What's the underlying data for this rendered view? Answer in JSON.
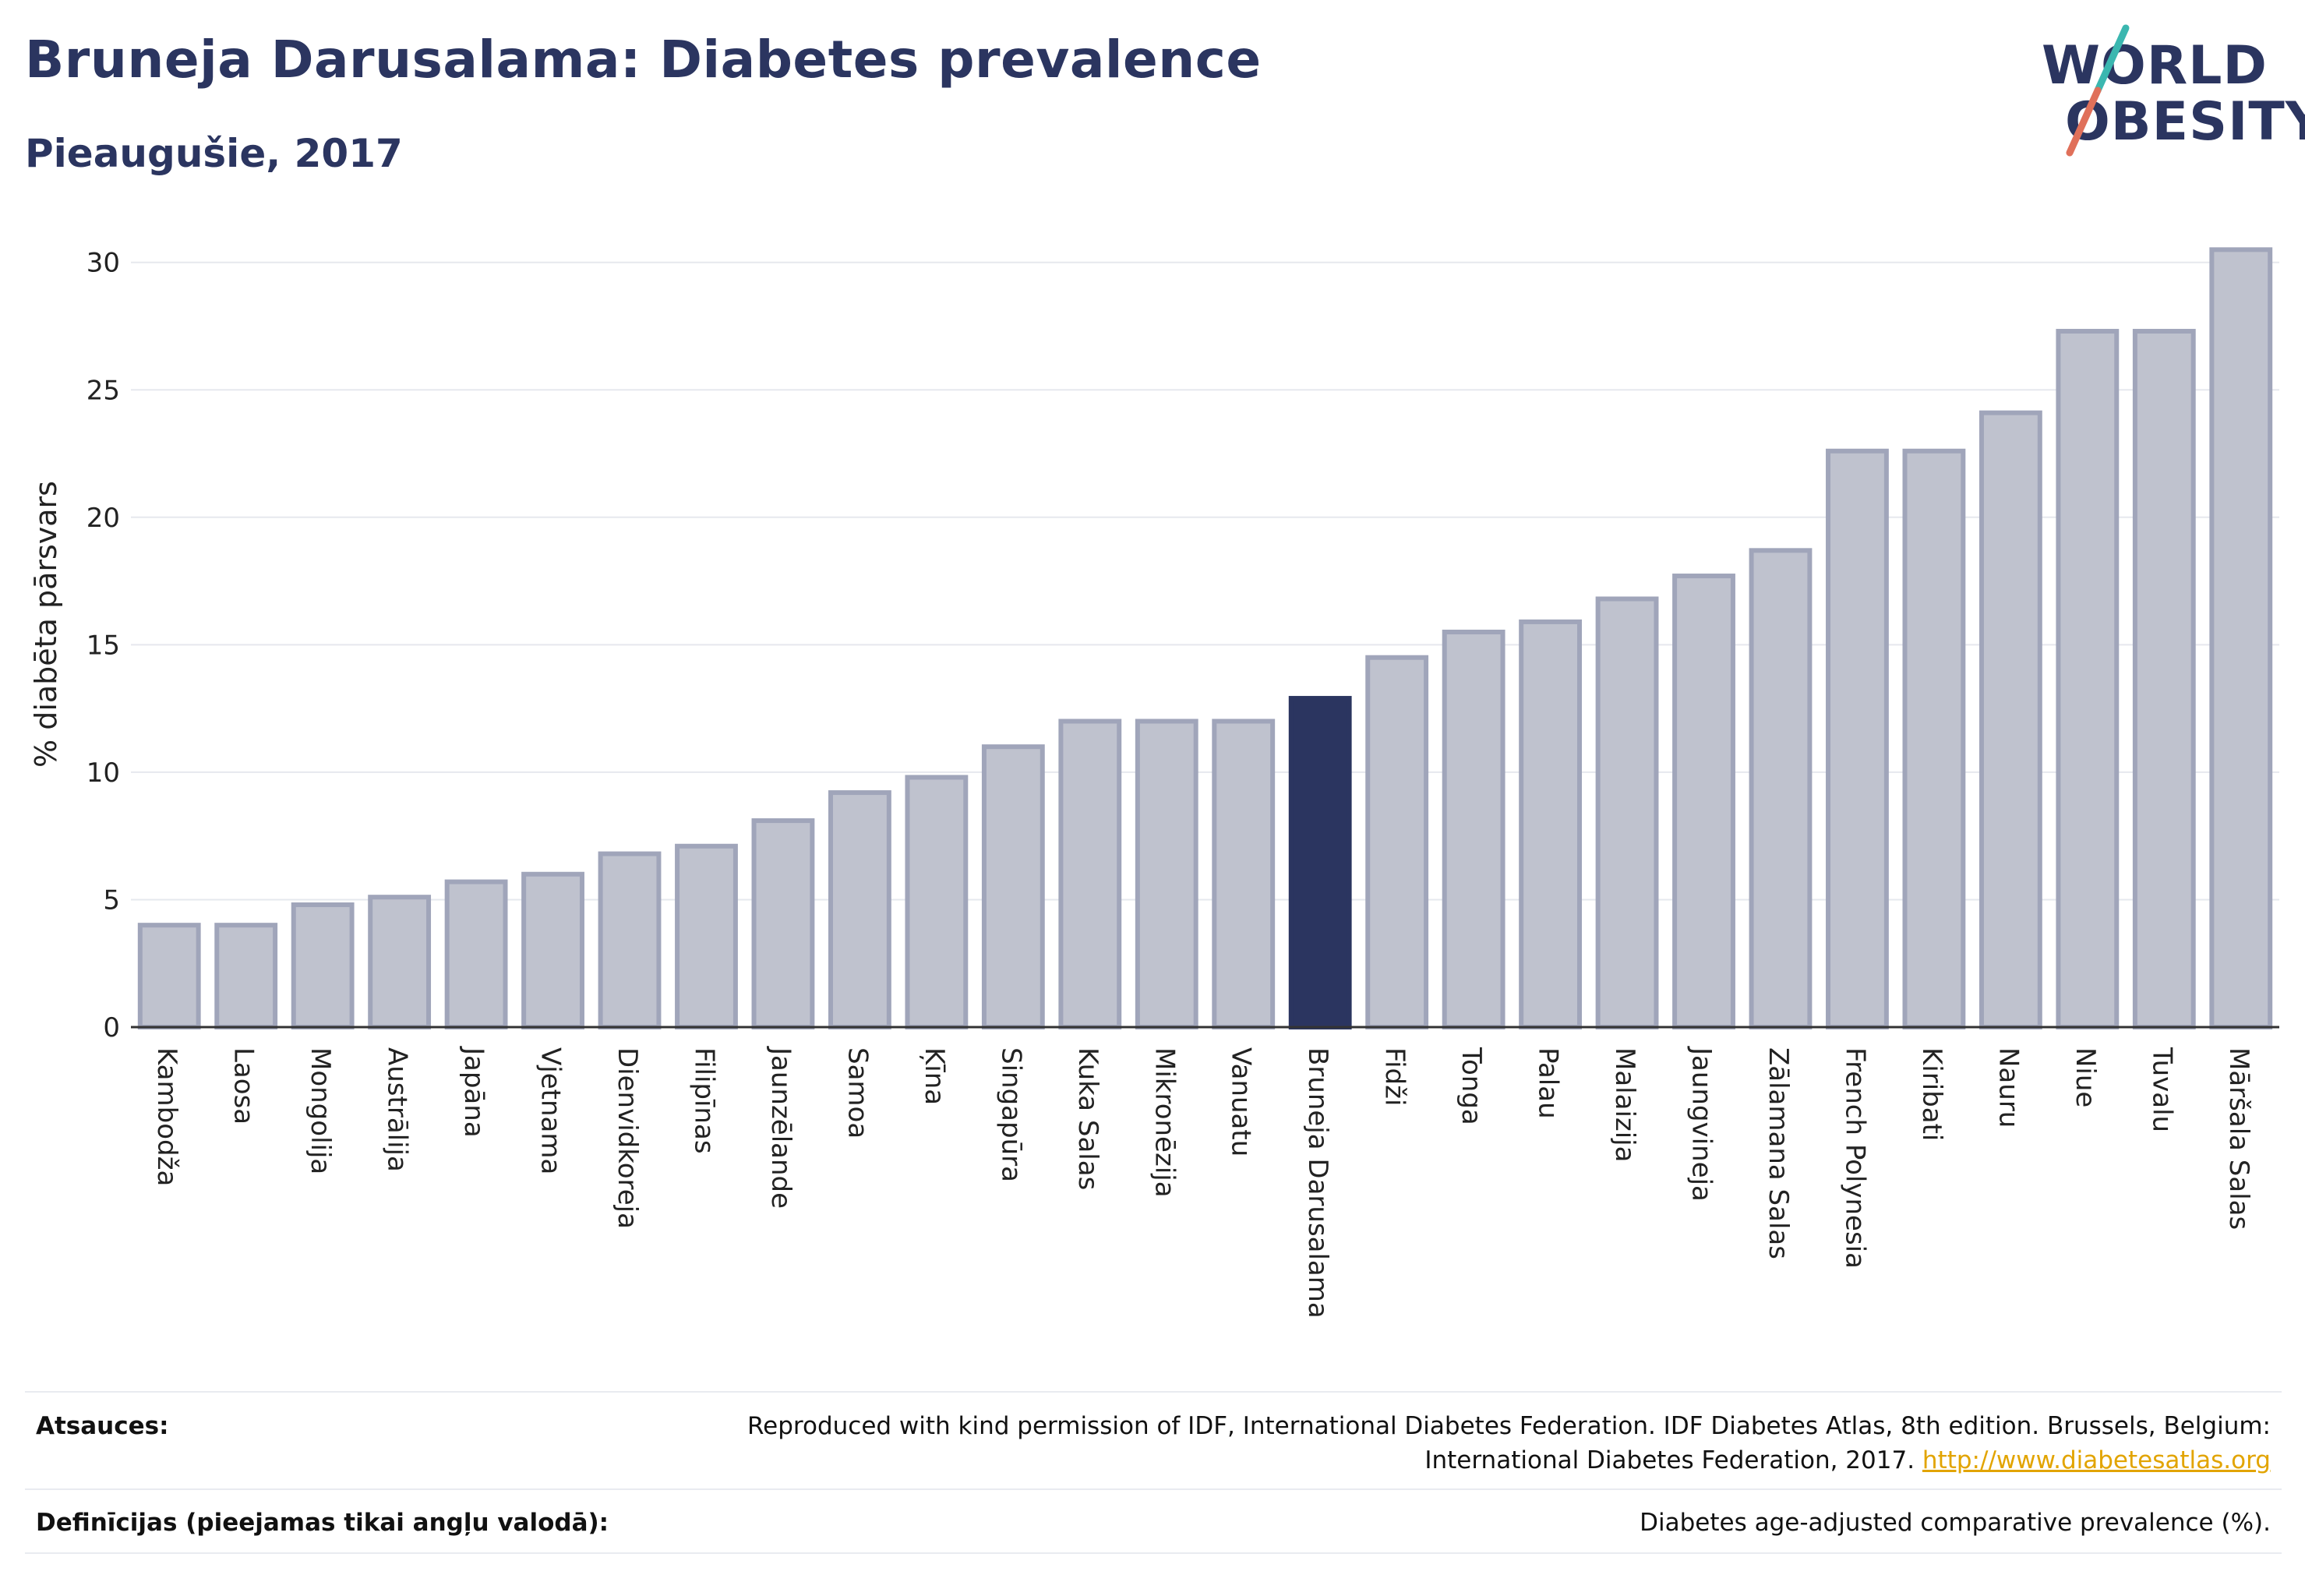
{
  "header": {
    "title": "Bruneja Darusalama: Diabetes prevalence",
    "subtitle": "Pieaugušie, 2017"
  },
  "logo": {
    "line1": "WORLD",
    "line2": "OBESITY",
    "colors": {
      "text": "#2b3560",
      "slash_top": "#3bb7b0",
      "slash_bottom": "#e0705a"
    }
  },
  "chart_data": {
    "type": "bar",
    "ylabel": "% diabēta pārsvars",
    "ylim": [
      0,
      31
    ],
    "yticks": [
      0,
      5,
      10,
      15,
      20,
      25,
      30
    ],
    "grid": true,
    "highlight": "Bruneja Darusalama",
    "colors": {
      "bar": "#bfc2ce",
      "bar_stroke": "#a0a5ba",
      "highlight": "#2b3560",
      "axis": "#333333",
      "grid": "#e6e8ee"
    },
    "categories": [
      "Kambodža",
      "Laosa",
      "Mongolija",
      "Austrālija",
      "Japāna",
      "Vjetnama",
      "Dienvidkoreja",
      "Filipīnas",
      "Jaunzēlande",
      "Samoa",
      "Ķīna",
      "Singapūra",
      "Kuka Salas",
      "Mikronēzija",
      "Vanuatu",
      "Bruneja Darusalama",
      "Fidži",
      "Tonga",
      "Palau",
      "Malaizija",
      "Jaungvineja",
      "Zālamana Salas",
      "French Polynesia",
      "Kiribati",
      "Nauru",
      "Niue",
      "Tuvalu",
      "Māršala Salas"
    ],
    "values": [
      4.0,
      4.0,
      4.8,
      5.1,
      5.7,
      6.0,
      6.8,
      7.1,
      8.1,
      9.2,
      9.8,
      11.0,
      12.0,
      12.0,
      12.0,
      12.9,
      14.5,
      15.5,
      15.9,
      16.8,
      17.7,
      18.7,
      22.6,
      22.6,
      24.1,
      27.3,
      27.3,
      30.5
    ]
  },
  "footer": {
    "sources_label": "Atsauces:",
    "sources_line1": "Reproduced with kind permission of IDF, International Diabetes Federation. IDF Diabetes Atlas, 8th edition. Brussels, Belgium:",
    "sources_line2": "International Diabetes Federation, 2017.",
    "sources_link": "http://www.diabetesatlas.org",
    "definitions_label": "Definīcijas (pieejamas tikai angļu valodā):",
    "definitions_value": "Diabetes age-adjusted comparative prevalence (%)."
  }
}
